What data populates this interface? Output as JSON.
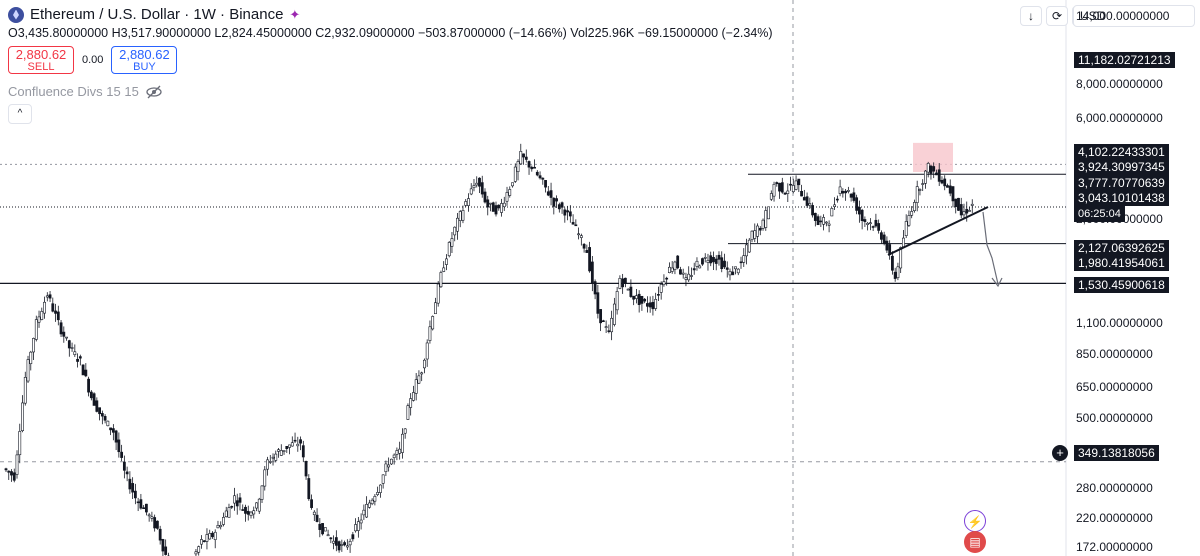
{
  "header": {
    "title": "Ethereum / U.S. Dollar · 1W · Binance",
    "ohlc": "O3,435.80000000 H3,517.90000000 L2,824.45000000 C2,932.09000000 −503.87000000 (−14.66%) Vol225.96K −69.15000000 (−2.34%)"
  },
  "trade": {
    "sell_price": "2,880.62",
    "sell_label": "SELL",
    "spread": "0.00",
    "buy_price": "2,880.62",
    "buy_label": "BUY"
  },
  "indicator": {
    "label": "Confluence Divs 15 15"
  },
  "toolbar": {
    "currency": "USD"
  },
  "colors": {
    "up": "#131722",
    "down": "#131722",
    "highlight": "#f7c6cc",
    "accent_red": "#f23645",
    "accent_blue": "#2962ff"
  },
  "price_axis": [
    {
      "label": "14,000.00000000",
      "value": 14000
    },
    {
      "label": "8,000.00000000",
      "value": 8000
    },
    {
      "label": "6,000.00000000",
      "value": 6000
    },
    {
      "label": "2,600.00000000",
      "value": 2600
    },
    {
      "label": "1,100.00000000",
      "value": 1100
    },
    {
      "label": "850.00000000",
      "value": 850
    },
    {
      "label": "650.00000000",
      "value": 650
    },
    {
      "label": "500.00000000",
      "value": 500
    },
    {
      "label": "280.00000000",
      "value": 280
    },
    {
      "label": "220.00000000",
      "value": 220
    },
    {
      "label": "172.00000000",
      "value": 172
    }
  ],
  "price_tags": [
    {
      "label": "11,182.02721213",
      "value": 11182.027
    },
    {
      "label": "4,102.22433301",
      "value": 4102.224
    },
    {
      "label": "3,924.30997345",
      "value": 3924.31
    },
    {
      "label": "3,777.70770639",
      "value": 3777.708
    },
    {
      "label": "3,043.10101438",
      "value": 3043.101
    },
    {
      "label": "06:25:04",
      "value": 2750
    },
    {
      "label": "2,127.06392625",
      "value": 2127.064
    },
    {
      "label": "1,980.41954061",
      "value": 1980.42
    },
    {
      "label": "1,530.45900618",
      "value": 1530.459
    },
    {
      "label": "349.13818056",
      "value": 349.138
    }
  ],
  "chart_data": {
    "type": "candlestick",
    "title": "Ethereum / U.S. Dollar · 1W · Binance",
    "y_scale": "log",
    "ylim": [
      160,
      16000
    ],
    "horizontal_levels": [
      3777.71,
      2127.06,
      1530.46
    ],
    "current_price": 2880.62,
    "highlight_zone": [
      3850,
      4900
    ],
    "close_series_weekly_approx": [
      330,
      310,
      700,
      1100,
      1400,
      1100,
      900,
      800,
      600,
      500,
      450,
      320,
      260,
      230,
      200,
      150,
      130,
      150,
      180,
      190,
      220,
      260,
      230,
      240,
      350,
      380,
      400,
      410,
      230,
      200,
      180,
      170,
      200,
      240,
      280,
      350,
      380,
      600,
      750,
      1200,
      1800,
      2400,
      3000,
      3600,
      2900,
      2800,
      3400,
      4400,
      4000,
      3500,
      3000,
      2800,
      2400,
      2000,
      1200,
      1000,
      1600,
      1400,
      1300,
      1280,
      1600,
      1850,
      1550,
      1800,
      1900,
      1850,
      1650,
      1800,
      2300,
      2500,
      3500,
      3300,
      3500,
      3000,
      2500,
      2600,
      3400,
      3200,
      2600,
      2500,
      2200,
      1600,
      2500,
      3300,
      4000,
      3700,
      3300,
      2700,
      2930
    ]
  }
}
